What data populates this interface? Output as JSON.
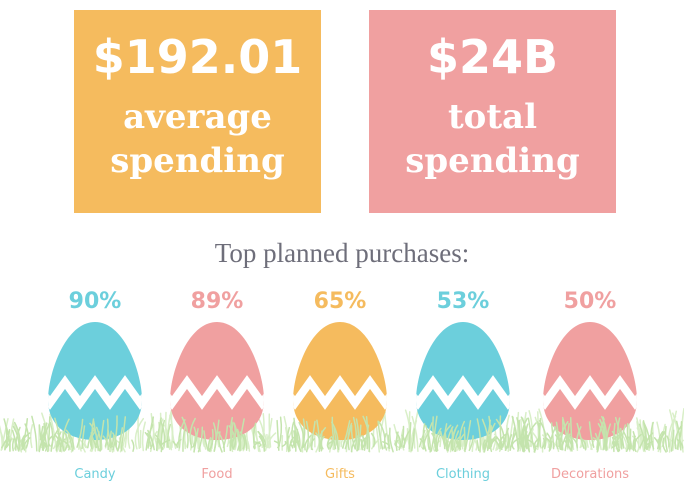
{
  "cards": [
    {
      "value": "$192.01",
      "label_lines": [
        "average",
        "spending"
      ],
      "color": "#f5bb5e"
    },
    {
      "value": "$24B",
      "label_lines": [
        "total",
        "spending"
      ],
      "color": "#f0a0a0"
    }
  ],
  "section_title": "Top planned purchases:",
  "purchases": [
    {
      "percent": "90%",
      "label": "Candy",
      "color": "#6ccfdc"
    },
    {
      "percent": "89%",
      "label": "Food",
      "color": "#f0a0a0"
    },
    {
      "percent": "65%",
      "label": "Gifts",
      "color": "#f5bb5e"
    },
    {
      "percent": "53%",
      "label": "Clothing",
      "color": "#6ccfdc"
    },
    {
      "percent": "50%",
      "label": "Decorations",
      "color": "#f0a0a0"
    }
  ]
}
